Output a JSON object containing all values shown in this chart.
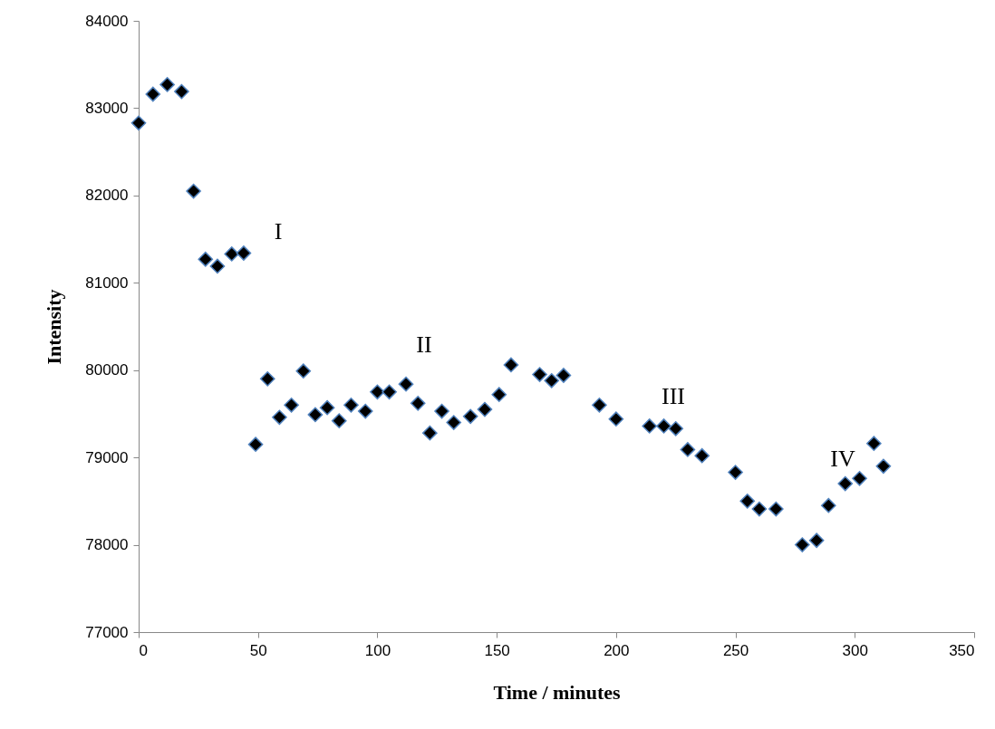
{
  "chart_data": {
    "type": "scatter",
    "xlabel": "Time / minutes",
    "ylabel": "Intensity",
    "x": [
      0,
      6,
      12,
      18,
      23,
      28,
      33,
      39,
      44,
      49,
      54,
      59,
      64,
      69,
      74,
      79,
      84,
      89,
      95,
      100,
      105,
      112,
      117,
      122,
      127,
      132,
      139,
      145,
      151,
      156,
      168,
      173,
      178,
      193,
      200,
      214,
      220,
      225,
      230,
      236,
      250,
      255,
      260,
      267,
      278,
      284,
      289,
      296,
      302,
      308,
      312
    ],
    "series": [
      {
        "color": "#000000",
        "values": [
          82830,
          83160,
          83270,
          83190,
          82050,
          81270,
          81190,
          81330,
          81340,
          79150,
          79900,
          79460,
          79600,
          79990,
          79490,
          79570,
          79420,
          79600,
          79530,
          79750,
          79750,
          79840,
          79620,
          79280,
          79530,
          79400,
          79470,
          79550,
          79720,
          80060,
          79950,
          79880,
          79940,
          79600,
          79440,
          79360,
          79360,
          79330,
          79090,
          79020,
          78830,
          78500,
          78410,
          78410,
          78000,
          78050,
          78450,
          78700,
          78760,
          79160,
          78900
        ]
      }
    ],
    "xlim": [
      0,
      350
    ],
    "xticks": [
      0,
      50,
      100,
      150,
      200,
      250,
      300,
      350
    ],
    "ylim": [
      77000,
      84000
    ],
    "yticks": [
      77000,
      78000,
      79000,
      80000,
      81000,
      82000,
      83000,
      84000
    ],
    "marker": "diamond",
    "grid": false,
    "annotations": [
      "I",
      "II",
      "III",
      "IV"
    ]
  }
}
